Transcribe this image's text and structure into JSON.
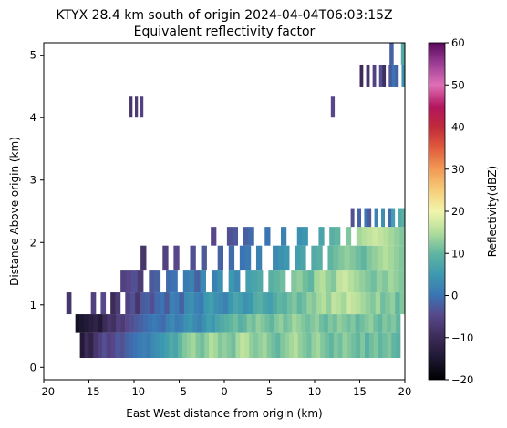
{
  "chart_data": {
    "type": "heatmap",
    "title": "KTYX 28.4 km south of origin 2024-04-04T06:03:15Z",
    "subtitle": "Equivalent reflectivity factor",
    "xlabel": "East West distance from origin (km)",
    "ylabel": "Distance Above origin (km)",
    "xlim": [
      -20,
      20
    ],
    "ylim": [
      -0.2,
      5.2
    ],
    "x_ticks": [
      -20,
      -15,
      -10,
      -5,
      0,
      5,
      10,
      15,
      20
    ],
    "y_ticks": [
      0,
      1,
      2,
      3,
      4,
      5
    ],
    "x_tick_labels": [
      "−20",
      "−15",
      "−10",
      "−5",
      "0",
      "5",
      "10",
      "15",
      "20"
    ],
    "y_tick_labels": [
      "0",
      "1",
      "2",
      "3",
      "4",
      "5"
    ],
    "colorbar": {
      "label": "Reflectivity(dBZ)",
      "range": [
        -20,
        60
      ],
      "ticks": [
        -20,
        -10,
        0,
        10,
        20,
        30,
        40,
        50,
        60
      ],
      "tick_labels": [
        "−20",
        "−10",
        "0",
        "10",
        "20",
        "30",
        "40",
        "50",
        "60"
      ],
      "colormap": "ChaseSpectral"
    },
    "layers": [
      {
        "y0": 0.15,
        "y1": 0.55,
        "x_start": -16.0,
        "x_end": 19.5,
        "values": [
          -14,
          -10,
          -12,
          -8,
          -6,
          -4,
          -6,
          -5,
          -3,
          -4,
          -2,
          -1,
          0,
          1,
          2,
          1,
          3,
          4,
          5,
          6,
          8,
          7,
          10,
          12,
          13,
          14,
          12,
          11,
          13,
          15,
          14,
          12,
          13,
          12,
          11,
          14,
          16,
          15,
          13,
          12,
          13,
          14,
          12,
          11,
          10,
          12,
          13,
          14,
          15,
          13,
          12,
          11,
          13,
          14,
          12,
          11,
          10,
          12,
          11,
          13,
          12,
          11,
          10,
          12,
          9,
          11,
          12,
          10,
          11,
          12,
          10,
          9
        ]
      },
      {
        "y0": 0.55,
        "y1": 0.85,
        "x_start": -16.5,
        "x_end": 19.5,
        "values": [
          -16,
          -15,
          -14,
          -13,
          -12,
          -14,
          -10,
          -8,
          -9,
          -6,
          -7,
          -5,
          -4,
          -3,
          -2,
          -1,
          0,
          1,
          0,
          -1,
          2,
          3,
          1,
          2,
          4,
          5,
          3,
          2,
          4,
          6,
          5,
          7,
          8,
          9,
          10,
          11,
          9,
          10,
          12,
          11,
          13,
          12,
          11,
          10,
          12,
          13,
          11,
          12,
          14,
          13,
          12,
          11,
          12,
          13,
          11,
          10,
          12,
          11,
          13,
          12,
          11,
          12,
          10,
          11,
          12,
          13,
          11,
          10,
          12,
          11,
          12,
          10
        ]
      },
      {
        "y0": 0.85,
        "y1": 1.2,
        "x_start": -17.5,
        "x_end": 20.0,
        "values": [
          -8,
          null,
          null,
          null,
          null,
          -6,
          null,
          -5,
          null,
          -10,
          -7,
          null,
          -6,
          -4,
          -8,
          -3,
          -2,
          -4,
          -1,
          0,
          -3,
          2,
          1,
          -2,
          3,
          4,
          2,
          1,
          5,
          6,
          4,
          3,
          2,
          5,
          7,
          6,
          4,
          5,
          8,
          9,
          7,
          6,
          8,
          10,
          9,
          11,
          12,
          10,
          11,
          13,
          12,
          14,
          15,
          13,
          16,
          15,
          14,
          17,
          16,
          15,
          14,
          13,
          12,
          14,
          11,
          12,
          13,
          10,
          12
        ]
      },
      {
        "y0": 1.2,
        "y1": 1.55,
        "x_start": -11.5,
        "x_end": 20.0,
        "values": [
          -6,
          -5,
          -4,
          -7,
          null,
          -3,
          -2,
          null,
          -1,
          0,
          null,
          1,
          2,
          -2,
          3,
          null,
          2,
          4,
          null,
          5,
          3,
          null,
          6,
          7,
          8,
          null,
          9,
          10,
          11,
          null,
          12,
          13,
          11,
          10,
          14,
          15,
          13,
          12,
          16,
          17,
          15,
          14,
          13,
          12,
          11,
          13,
          12,
          14,
          13,
          12
        ]
      },
      {
        "y0": 1.55,
        "y1": 1.95,
        "x_start": -10.5,
        "x_end": 20.0,
        "values": [
          null,
          null,
          -8,
          null,
          null,
          null,
          -6,
          null,
          -5,
          null,
          null,
          -4,
          null,
          -3,
          null,
          null,
          -2,
          null,
          -1,
          null,
          0,
          1,
          null,
          2,
          null,
          null,
          3,
          4,
          5,
          null,
          6,
          7,
          null,
          8,
          9,
          null,
          10,
          11,
          12,
          13,
          12,
          11,
          10,
          12,
          13,
          14,
          15,
          14,
          13,
          12
        ]
      },
      {
        "y0": 1.95,
        "y1": 2.25,
        "x_start": -1.5,
        "x_end": 20.0,
        "values": [
          -5,
          null,
          null,
          -4,
          -3,
          null,
          -2,
          -1,
          null,
          null,
          0,
          null,
          null,
          2,
          null,
          null,
          4,
          5,
          null,
          null,
          7,
          null,
          9,
          10,
          null,
          12,
          null,
          14,
          15,
          16,
          17,
          16,
          15,
          14,
          13,
          12
        ]
      },
      {
        "y0": 2.25,
        "y1": 2.55,
        "x_start": 14.0,
        "x_end": 20.0,
        "values": [
          -4,
          null,
          -2,
          null,
          0,
          -3,
          null,
          2,
          null,
          4,
          null,
          -1,
          6,
          null,
          8,
          9
        ]
      },
      {
        "y0": 4.0,
        "y1": 4.35,
        "x_start": -10.5,
        "x_end": -9.0,
        "values": [
          -8,
          null,
          -7,
          null,
          -6
        ]
      },
      {
        "y0": 4.0,
        "y1": 4.35,
        "x_start": 11.8,
        "x_end": 12.2,
        "values": [
          -5
        ]
      },
      {
        "y0": 4.5,
        "y1": 4.85,
        "x_start": 15.0,
        "x_end": 20.0,
        "values": [
          -10,
          null,
          -8,
          null,
          -6,
          null,
          -4,
          -9,
          null,
          -3,
          0,
          -2,
          null,
          4
        ]
      },
      {
        "y0": 4.85,
        "y1": 5.2,
        "x_start": 18.3,
        "x_end": 20.0,
        "values": [
          -2,
          null,
          null,
          8
        ]
      }
    ]
  }
}
